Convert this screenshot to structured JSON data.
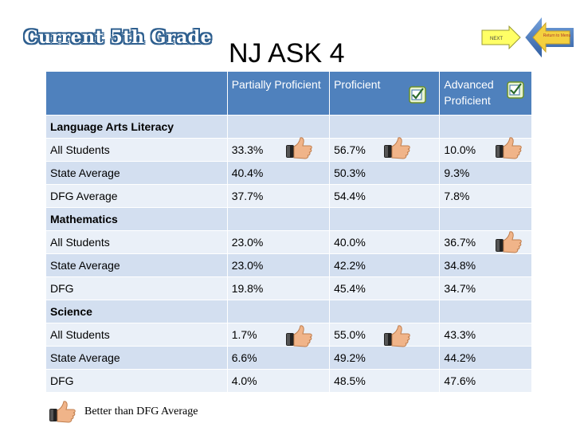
{
  "badge": "Current 5th Grade",
  "title": "NJ ASK 4",
  "nav": {
    "next_label": "NEXT",
    "home_label": "Return to Menu"
  },
  "columns": [
    "",
    "Partially Proficient",
    "Proficient",
    "Advanced Proficient"
  ],
  "rows": [
    {
      "type": "section",
      "label": "Language Arts Literacy",
      "v": [
        "",
        "",
        ""
      ]
    },
    {
      "type": "data",
      "label": "All Students",
      "v": [
        "33.3%",
        "56.7%",
        "10.0%"
      ]
    },
    {
      "type": "data",
      "label": "State Average",
      "v": [
        "40.4%",
        "50.3%",
        "9.3%"
      ]
    },
    {
      "type": "data",
      "label": "DFG Average",
      "v": [
        "37.7%",
        "54.4%",
        "7.8%"
      ]
    },
    {
      "type": "section",
      "label": "Mathematics",
      "v": [
        "",
        "",
        ""
      ]
    },
    {
      "type": "data",
      "label": "All Students",
      "v": [
        "23.0%",
        "40.0%",
        "36.7%"
      ]
    },
    {
      "type": "data",
      "label": "State Average",
      "v": [
        "23.0%",
        "42.2%",
        "34.8%"
      ]
    },
    {
      "type": "data",
      "label": "DFG",
      "v": [
        "19.8%",
        "45.4%",
        "34.7%"
      ]
    },
    {
      "type": "section",
      "label": "Science",
      "v": [
        "",
        "",
        ""
      ]
    },
    {
      "type": "data",
      "label": "All Students",
      "v": [
        "1.7%",
        "55.0%",
        "43.3%"
      ]
    },
    {
      "type": "data",
      "label": "State Average",
      "v": [
        "6.6%",
        "49.2%",
        "44.2%"
      ]
    },
    {
      "type": "data",
      "label": "DFG",
      "v": [
        "4.0%",
        "48.5%",
        "47.6%"
      ]
    }
  ],
  "legend": "Better than DFG Average",
  "colors": {
    "header": "#4f81bd",
    "band": "#d3dff0",
    "plain": "#eaf0f8",
    "section": "#943634",
    "badge_outline": "#2e5f8f"
  }
}
